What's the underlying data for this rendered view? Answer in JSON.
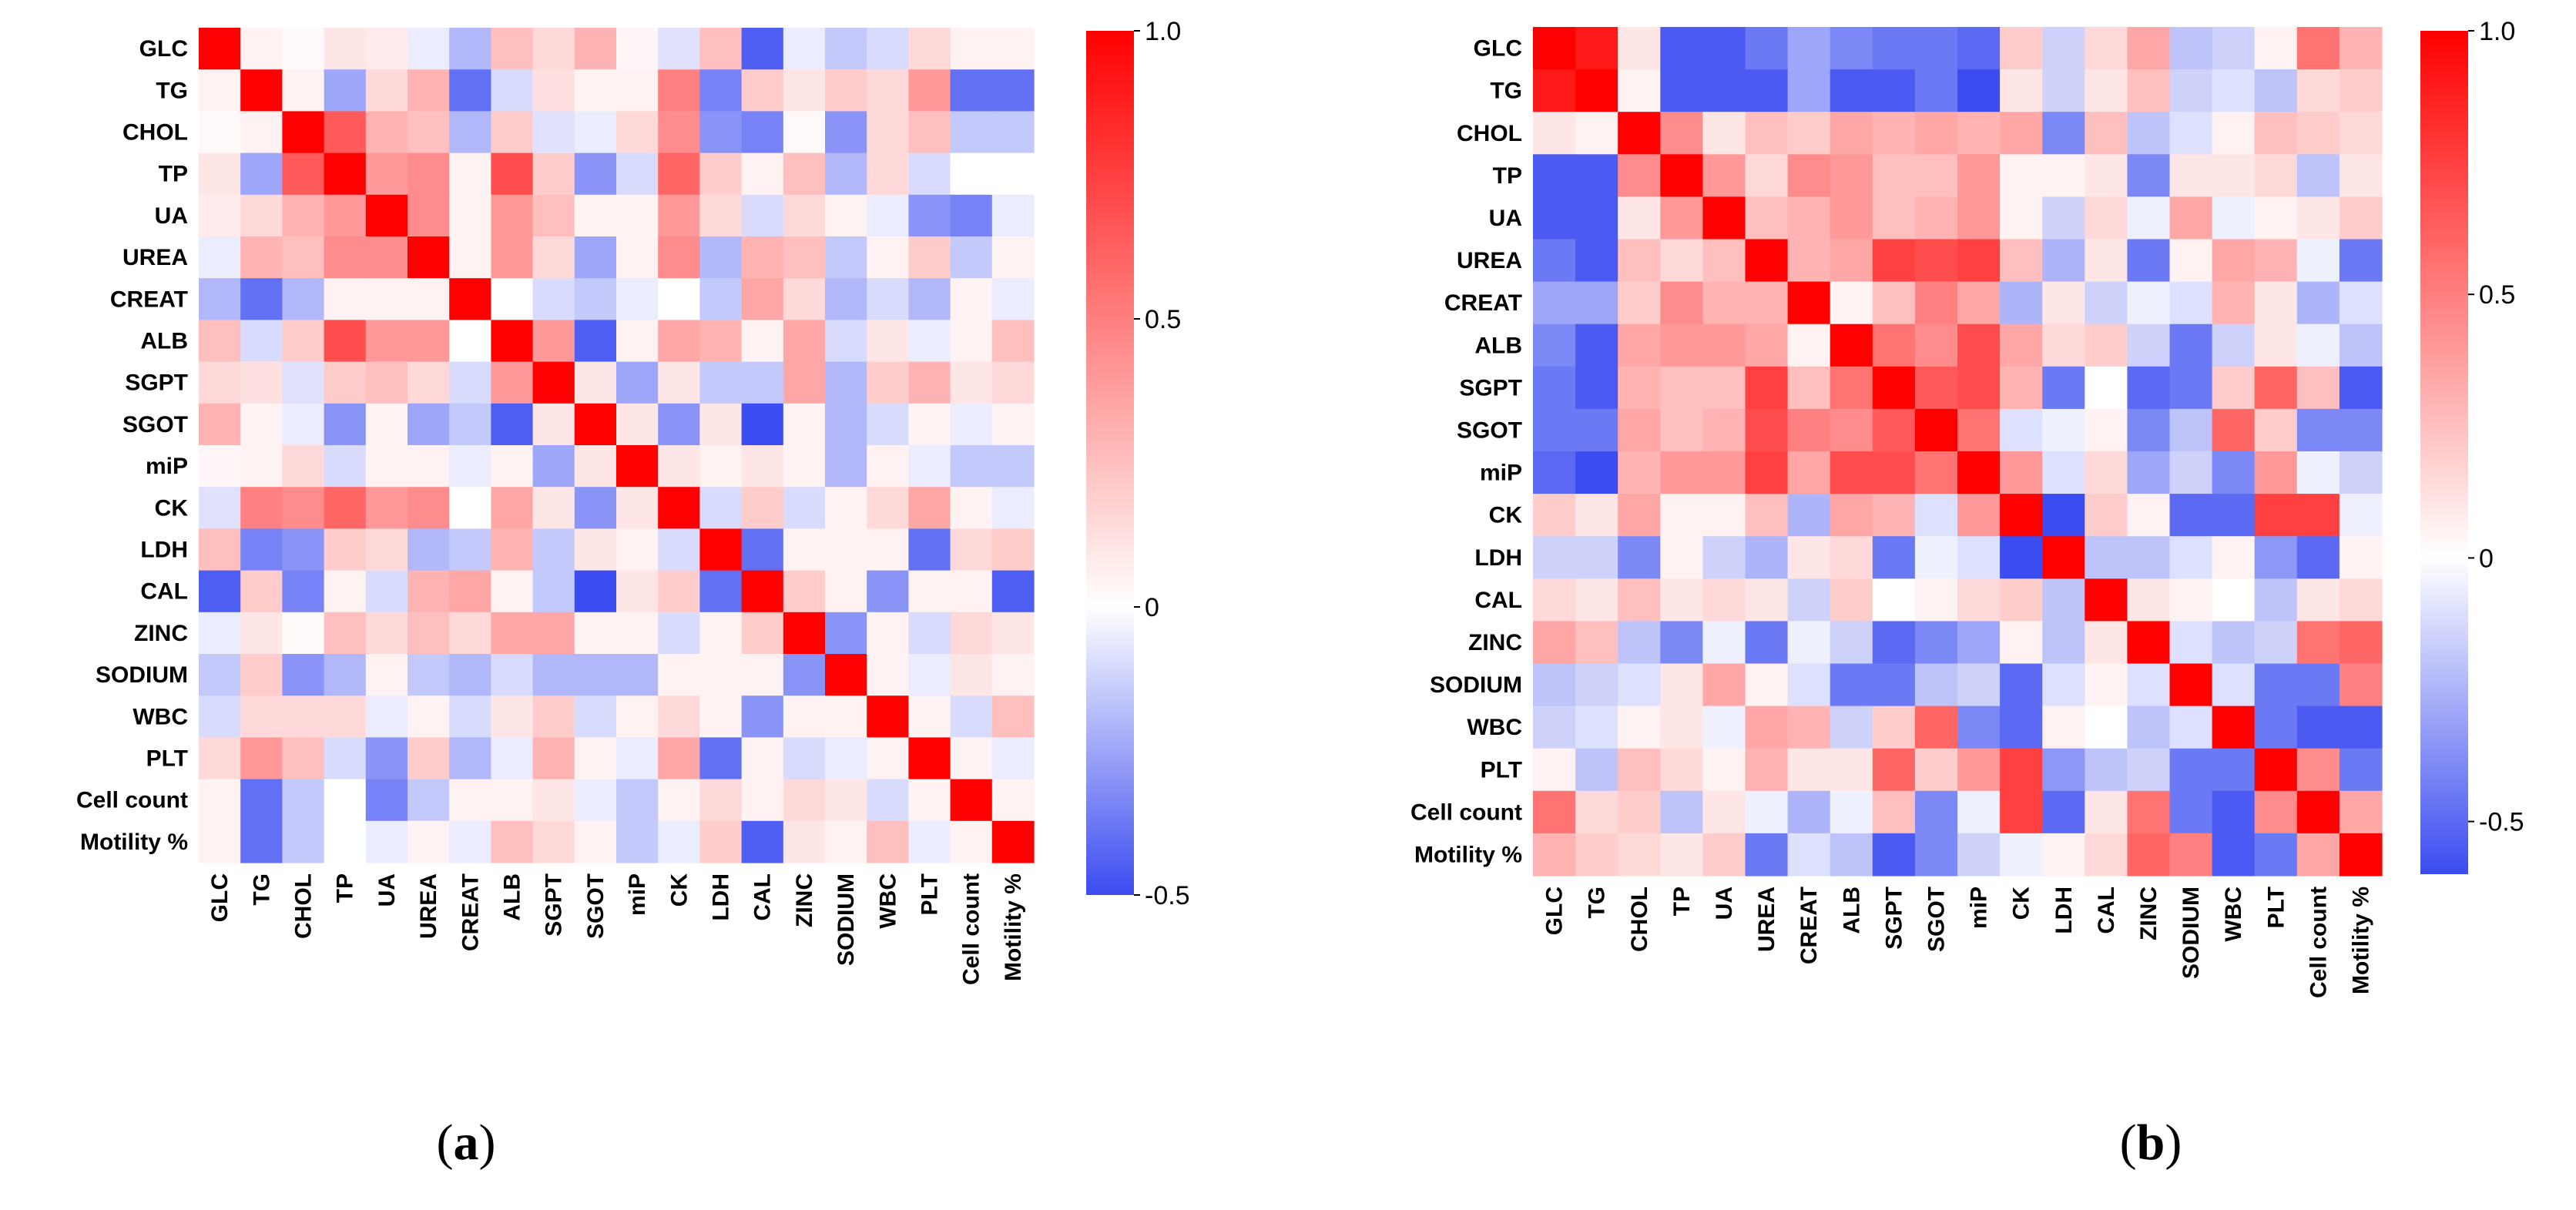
{
  "chart_data": [
    {
      "type": "heatmap",
      "panel_label": "(a)",
      "labels": [
        "GLC",
        "TG",
        "CHOL",
        "TP",
        "UA",
        "UREA",
        "CREAT",
        "ALB",
        "SGPT",
        "SGOT",
        "miP",
        "CK",
        "LDH",
        "CAL",
        "ZINC",
        "SODIUM",
        "WBC",
        "PLT",
        "Cell count",
        "Motility %"
      ],
      "colorbar": {
        "min": -0.5,
        "max": 1.0,
        "ticks": [
          "1.0",
          "0.5",
          "0",
          "-0.5"
        ],
        "tick_values": [
          1.0,
          0.5,
          0,
          -0.5
        ]
      },
      "values": [
        [
          1.0,
          0.05,
          0.02,
          0.1,
          0.08,
          -0.05,
          -0.2,
          0.25,
          0.15,
          0.3,
          0.03,
          -0.08,
          0.25,
          -0.45,
          -0.05,
          -0.15,
          -0.1,
          0.15,
          0.05,
          0.05
        ],
        [
          0.05,
          1.0,
          0.05,
          -0.25,
          0.15,
          0.3,
          -0.4,
          -0.1,
          0.12,
          0.05,
          0.05,
          0.5,
          -0.35,
          0.2,
          0.1,
          0.2,
          0.15,
          0.4,
          -0.4,
          -0.4
        ],
        [
          0.02,
          0.05,
          1.0,
          0.65,
          0.3,
          0.25,
          -0.2,
          0.2,
          -0.08,
          -0.05,
          0.15,
          0.45,
          -0.3,
          -0.35,
          0.02,
          -0.3,
          0.15,
          0.25,
          -0.15,
          -0.15
        ],
        [
          0.1,
          -0.25,
          0.65,
          1.0,
          0.4,
          0.45,
          0.05,
          0.7,
          0.2,
          -0.3,
          -0.1,
          0.6,
          0.2,
          0.05,
          0.25,
          -0.2,
          0.15,
          -0.1,
          0.0,
          0.0
        ],
        [
          0.08,
          0.15,
          0.3,
          0.4,
          1.0,
          0.45,
          0.05,
          0.4,
          0.25,
          0.05,
          0.05,
          0.4,
          0.15,
          -0.1,
          0.15,
          0.05,
          -0.05,
          -0.3,
          -0.35,
          -0.05
        ],
        [
          -0.05,
          0.3,
          0.25,
          0.45,
          0.45,
          1.0,
          0.05,
          0.4,
          0.15,
          -0.25,
          0.05,
          0.45,
          -0.2,
          0.3,
          0.25,
          -0.15,
          0.05,
          0.2,
          -0.15,
          0.05
        ],
        [
          -0.2,
          -0.4,
          -0.2,
          0.05,
          0.05,
          0.05,
          1.0,
          0.0,
          -0.1,
          -0.15,
          -0.05,
          0.0,
          -0.15,
          0.35,
          0.15,
          -0.2,
          -0.1,
          -0.2,
          0.05,
          -0.05
        ],
        [
          0.25,
          -0.1,
          0.2,
          0.7,
          0.4,
          0.4,
          0.0,
          1.0,
          0.4,
          -0.45,
          0.05,
          0.35,
          0.3,
          0.05,
          0.35,
          -0.1,
          0.1,
          -0.05,
          0.05,
          0.25
        ],
        [
          0.15,
          0.12,
          -0.08,
          0.2,
          0.25,
          0.15,
          -0.1,
          0.4,
          1.0,
          0.1,
          -0.25,
          0.1,
          -0.15,
          -0.15,
          0.35,
          -0.2,
          0.2,
          0.3,
          0.1,
          0.15
        ],
        [
          0.3,
          0.05,
          -0.05,
          -0.3,
          0.05,
          -0.25,
          -0.15,
          -0.45,
          0.1,
          1.0,
          0.1,
          -0.3,
          0.1,
          -0.5,
          0.05,
          -0.2,
          -0.1,
          0.05,
          -0.05,
          0.05
        ],
        [
          0.03,
          0.05,
          0.15,
          -0.1,
          0.05,
          0.05,
          -0.05,
          0.05,
          -0.25,
          0.1,
          1.0,
          0.1,
          0.05,
          0.1,
          0.05,
          -0.2,
          0.05,
          -0.05,
          -0.15,
          -0.15
        ],
        [
          -0.08,
          0.5,
          0.45,
          0.6,
          0.4,
          0.45,
          0.0,
          0.35,
          0.1,
          -0.3,
          0.1,
          1.0,
          -0.1,
          0.2,
          -0.1,
          0.05,
          0.15,
          0.35,
          0.05,
          -0.05
        ],
        [
          0.25,
          -0.35,
          -0.3,
          0.2,
          0.15,
          -0.2,
          -0.15,
          0.3,
          -0.15,
          0.1,
          0.05,
          -0.1,
          1.0,
          -0.4,
          0.05,
          0.05,
          0.05,
          -0.4,
          0.15,
          0.2
        ],
        [
          -0.45,
          0.2,
          -0.35,
          0.05,
          -0.1,
          0.3,
          0.35,
          0.05,
          -0.15,
          -0.5,
          0.1,
          0.2,
          -0.4,
          1.0,
          0.2,
          0.05,
          -0.3,
          0.05,
          0.05,
          -0.45
        ],
        [
          -0.05,
          0.1,
          0.02,
          0.25,
          0.15,
          0.25,
          0.15,
          0.35,
          0.35,
          0.05,
          0.05,
          -0.1,
          0.05,
          0.2,
          1.0,
          -0.3,
          0.05,
          -0.1,
          0.15,
          0.1
        ],
        [
          -0.15,
          0.2,
          -0.3,
          -0.2,
          0.05,
          -0.15,
          -0.2,
          -0.1,
          -0.2,
          -0.2,
          -0.2,
          0.05,
          0.05,
          0.05,
          -0.3,
          1.0,
          0.05,
          -0.05,
          0.1,
          0.05
        ],
        [
          -0.1,
          0.15,
          0.15,
          0.15,
          -0.05,
          0.05,
          -0.1,
          0.1,
          0.2,
          -0.1,
          0.05,
          0.15,
          0.05,
          -0.3,
          0.05,
          0.05,
          1.0,
          0.05,
          -0.1,
          0.25
        ],
        [
          0.15,
          0.4,
          0.25,
          -0.1,
          -0.3,
          0.2,
          -0.2,
          -0.05,
          0.3,
          0.05,
          -0.05,
          0.35,
          -0.4,
          0.05,
          -0.1,
          -0.05,
          0.05,
          1.0,
          0.05,
          -0.05
        ],
        [
          0.05,
          -0.4,
          -0.15,
          0.0,
          -0.35,
          -0.15,
          0.05,
          0.05,
          0.1,
          -0.05,
          -0.15,
          0.05,
          0.15,
          0.05,
          0.15,
          0.1,
          -0.1,
          0.05,
          1.0,
          0.05
        ],
        [
          0.05,
          -0.4,
          -0.15,
          0.0,
          -0.05,
          0.05,
          -0.05,
          0.25,
          0.15,
          0.05,
          -0.15,
          -0.05,
          0.2,
          -0.45,
          0.1,
          0.05,
          0.25,
          -0.05,
          0.05,
          1.0
        ]
      ]
    },
    {
      "type": "heatmap",
      "panel_label": "(b)",
      "labels": [
        "GLC",
        "TG",
        "CHOL",
        "TP",
        "UA",
        "UREA",
        "CREAT",
        "ALB",
        "SGPT",
        "SGOT",
        "miP",
        "CK",
        "LDH",
        "CAL",
        "ZINC",
        "SODIUM",
        "WBC",
        "PLT",
        "Cell count",
        "Motility %"
      ],
      "colorbar": {
        "min": -0.6,
        "max": 1.0,
        "ticks": [
          "1.0",
          "0.5",
          "0",
          "-0.5"
        ],
        "tick_values": [
          1.0,
          0.5,
          0,
          -0.5
        ]
      },
      "values": [
        [
          1.0,
          0.9,
          0.1,
          -0.55,
          -0.55,
          -0.45,
          -0.3,
          -0.4,
          -0.45,
          -0.45,
          -0.5,
          0.2,
          -0.15,
          0.15,
          0.35,
          -0.2,
          -0.15,
          0.05,
          0.55,
          0.3
        ],
        [
          0.9,
          1.0,
          0.05,
          -0.55,
          -0.55,
          -0.55,
          -0.3,
          -0.55,
          -0.55,
          -0.45,
          -0.6,
          0.1,
          -0.15,
          0.1,
          0.25,
          -0.15,
          -0.1,
          -0.2,
          0.15,
          0.2
        ],
        [
          0.1,
          0.05,
          1.0,
          0.45,
          0.1,
          0.25,
          0.2,
          0.35,
          0.3,
          0.35,
          0.3,
          0.35,
          -0.4,
          0.25,
          -0.2,
          -0.1,
          0.05,
          0.25,
          0.2,
          0.15
        ],
        [
          -0.55,
          -0.55,
          0.45,
          1.0,
          0.4,
          0.15,
          0.45,
          0.4,
          0.25,
          0.25,
          0.4,
          0.05,
          0.05,
          0.1,
          -0.4,
          0.1,
          0.1,
          0.15,
          -0.2,
          0.1
        ],
        [
          -0.55,
          -0.55,
          0.1,
          0.4,
          1.0,
          0.25,
          0.3,
          0.4,
          0.25,
          0.3,
          0.4,
          0.05,
          -0.15,
          0.15,
          -0.05,
          0.35,
          -0.05,
          0.05,
          0.1,
          0.2
        ],
        [
          -0.45,
          -0.55,
          0.25,
          0.15,
          0.25,
          1.0,
          0.3,
          0.35,
          0.75,
          0.7,
          0.75,
          0.25,
          -0.25,
          0.1,
          -0.45,
          0.05,
          0.35,
          0.3,
          -0.05,
          -0.45
        ],
        [
          -0.3,
          -0.3,
          0.2,
          0.45,
          0.3,
          0.3,
          1.0,
          0.05,
          0.25,
          0.5,
          0.35,
          -0.25,
          0.1,
          -0.15,
          -0.05,
          -0.1,
          0.3,
          0.1,
          -0.25,
          -0.1
        ],
        [
          -0.4,
          -0.55,
          0.35,
          0.4,
          0.4,
          0.35,
          0.05,
          1.0,
          0.55,
          0.45,
          0.7,
          0.35,
          0.15,
          0.2,
          -0.15,
          -0.45,
          -0.15,
          0.1,
          -0.05,
          -0.2
        ],
        [
          -0.45,
          -0.55,
          0.3,
          0.25,
          0.25,
          0.75,
          0.25,
          0.55,
          1.0,
          0.65,
          0.7,
          0.3,
          -0.45,
          0.0,
          -0.5,
          -0.45,
          0.2,
          0.6,
          0.25,
          -0.55
        ],
        [
          -0.45,
          -0.45,
          0.35,
          0.25,
          0.3,
          0.7,
          0.5,
          0.45,
          0.65,
          1.0,
          0.55,
          -0.1,
          -0.05,
          0.05,
          -0.4,
          -0.2,
          0.6,
          0.2,
          -0.4,
          -0.4
        ],
        [
          -0.5,
          -0.6,
          0.3,
          0.4,
          0.4,
          0.75,
          0.35,
          0.7,
          0.7,
          0.55,
          1.0,
          0.4,
          -0.1,
          0.15,
          -0.3,
          -0.15,
          -0.4,
          0.4,
          -0.05,
          -0.15
        ],
        [
          0.2,
          0.1,
          0.35,
          0.05,
          0.05,
          0.25,
          -0.25,
          0.35,
          0.3,
          -0.1,
          0.4,
          1.0,
          -0.6,
          0.2,
          0.05,
          -0.5,
          -0.5,
          0.75,
          0.75,
          -0.05
        ],
        [
          -0.15,
          -0.15,
          -0.4,
          0.05,
          -0.15,
          -0.25,
          0.1,
          0.15,
          -0.45,
          -0.05,
          -0.1,
          -0.6,
          1.0,
          -0.2,
          -0.2,
          -0.1,
          0.05,
          -0.35,
          -0.5,
          0.05
        ],
        [
          0.15,
          0.1,
          0.25,
          0.1,
          0.15,
          0.1,
          -0.15,
          0.2,
          0.0,
          0.05,
          0.15,
          0.2,
          -0.2,
          1.0,
          0.1,
          0.05,
          0.0,
          -0.2,
          0.1,
          0.15
        ],
        [
          0.35,
          0.25,
          -0.2,
          -0.4,
          -0.05,
          -0.45,
          -0.05,
          -0.15,
          -0.5,
          -0.4,
          -0.3,
          0.05,
          -0.2,
          0.1,
          1.0,
          -0.1,
          -0.2,
          -0.15,
          0.55,
          0.6
        ],
        [
          -0.2,
          -0.15,
          -0.1,
          0.1,
          0.35,
          0.05,
          -0.1,
          -0.45,
          -0.45,
          -0.2,
          -0.15,
          -0.5,
          -0.1,
          0.05,
          -0.1,
          1.0,
          -0.1,
          -0.45,
          -0.45,
          0.5
        ],
        [
          -0.15,
          -0.1,
          0.05,
          0.1,
          -0.05,
          0.35,
          0.3,
          -0.15,
          0.2,
          0.6,
          -0.4,
          -0.5,
          0.05,
          0.0,
          -0.2,
          -0.1,
          1.0,
          -0.45,
          -0.55,
          -0.55
        ],
        [
          0.05,
          -0.2,
          0.25,
          0.15,
          0.05,
          0.3,
          0.1,
          0.1,
          0.6,
          0.2,
          0.4,
          0.75,
          -0.35,
          -0.2,
          -0.15,
          -0.45,
          -0.45,
          1.0,
          0.45,
          -0.45
        ],
        [
          0.55,
          0.15,
          0.2,
          -0.2,
          0.1,
          -0.05,
          -0.25,
          -0.05,
          0.25,
          -0.4,
          -0.05,
          0.75,
          -0.5,
          0.1,
          0.55,
          -0.45,
          -0.55,
          0.45,
          1.0,
          0.35
        ],
        [
          0.3,
          0.2,
          0.15,
          0.1,
          0.2,
          -0.45,
          -0.1,
          -0.2,
          -0.55,
          -0.4,
          -0.15,
          -0.05,
          0.05,
          0.15,
          0.6,
          0.5,
          -0.55,
          -0.45,
          0.35,
          1.0
        ]
      ]
    }
  ]
}
